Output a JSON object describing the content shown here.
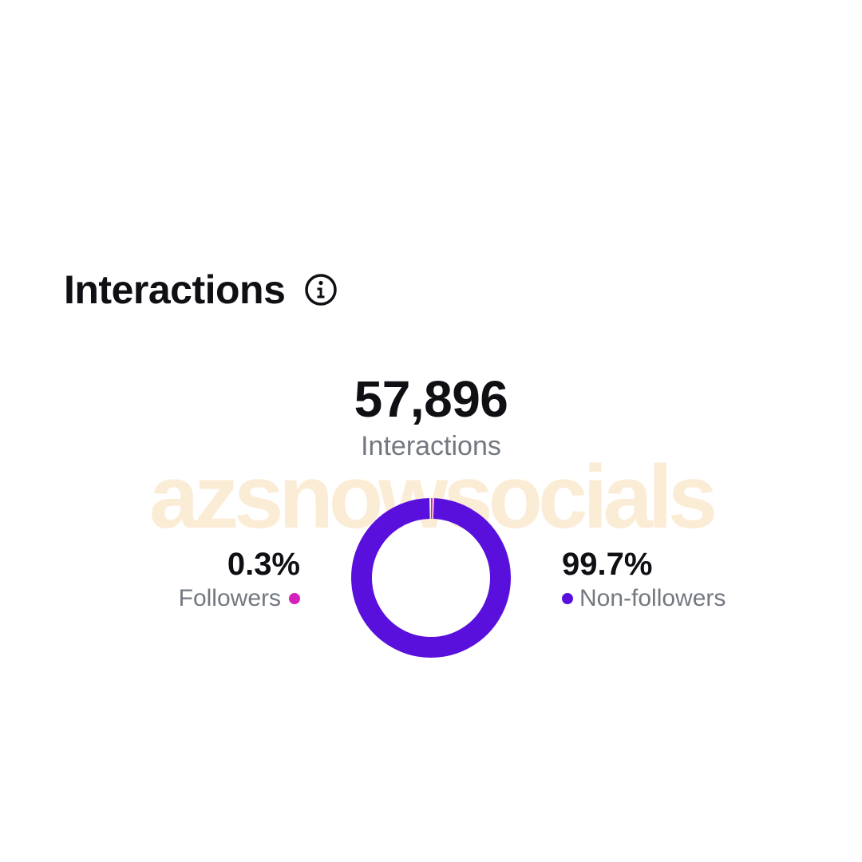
{
  "section": {
    "title": "Interactions",
    "info_icon": "info-icon"
  },
  "total": {
    "value": "57,896",
    "label": "Interactions"
  },
  "watermark": "azsnowsocials",
  "breakdown": [
    {
      "value": "0.3%",
      "label": "Followers",
      "color": "#d61fbd"
    },
    {
      "value": "99.7%",
      "label": "Non-followers",
      "color": "#5a10dc"
    }
  ],
  "chart_data": {
    "type": "pie",
    "categories": [
      "Followers",
      "Non-followers"
    ],
    "values": [
      0.3,
      99.7
    ],
    "colors": [
      "#d61fbd",
      "#5a10dc"
    ]
  }
}
